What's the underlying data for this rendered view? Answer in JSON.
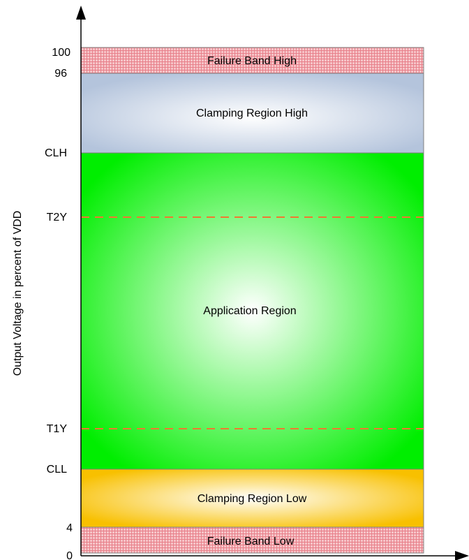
{
  "axis": {
    "ylabel": "Output Voltage in percent of VDD"
  },
  "ticks": [
    "100",
    "96",
    "CLH",
    "T2Y",
    "T1Y",
    "CLL",
    "4",
    "0"
  ],
  "regions": {
    "failure_high": "Failure Band High",
    "clamp_high": "Clamping Region High",
    "application": "Application Region",
    "clamp_low": "Clamping Region Low",
    "failure_low": "Failure Band Low"
  },
  "colors": {
    "failure_band": "#f2a0a8",
    "clamp_high_edge": "#b4c4dc",
    "application_edge": "#00ee00",
    "clamp_low_edge": "#f8c000",
    "threshold_line": "#f07830"
  }
}
